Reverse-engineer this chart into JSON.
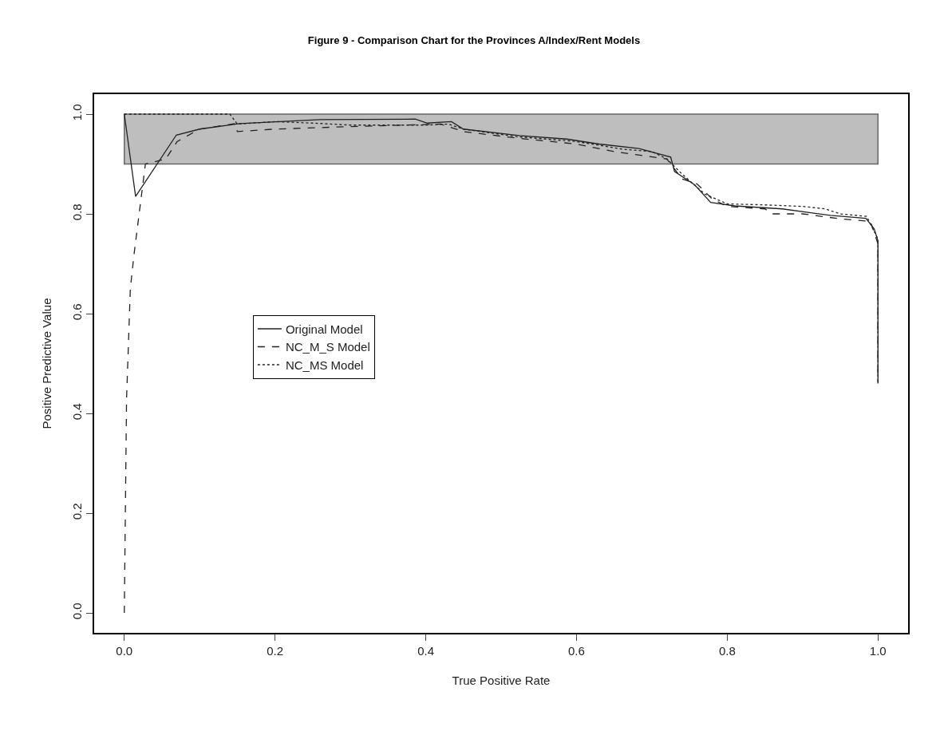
{
  "chart_data": {
    "type": "line",
    "title": "Figure 9 - Comparison Chart for the Provinces A/Index/Rent Models",
    "xlabel": "True Positive Rate",
    "ylabel": "Positive Predictive Value",
    "xlim": [
      -0.04,
      1.04
    ],
    "ylim": [
      -0.04,
      1.04
    ],
    "xticks": [
      {
        "value": 0,
        "label": "0.0"
      },
      0.2,
      0.4,
      0.6,
      0.8,
      {
        "value": 1,
        "label": "1.0"
      }
    ],
    "yticks": [
      {
        "value": 0,
        "label": "0.0"
      },
      0.2,
      0.4,
      0.6,
      0.8,
      {
        "value": 1,
        "label": "1.0"
      }
    ],
    "grid": false,
    "legend": "left",
    "marker": "none",
    "bands": [
      {
        "axis": "y",
        "from": 0.9,
        "to": 1.0,
        "color": "#bebebe"
      }
    ],
    "series": [
      {
        "name": "Original Model",
        "color": "#222222",
        "line_style": "solid",
        "x": [
          0,
          0.015,
          0.069,
          0.1,
          0.153,
          0.26,
          0.386,
          0.402,
          0.434,
          0.45,
          0.524,
          0.587,
          0.63,
          0.683,
          0.725,
          0.73,
          0.757,
          0.778,
          0.81,
          0.873,
          0.937,
          0.984,
          0.995,
          1.0,
          1.0
        ],
        "values": [
          1.0,
          0.835,
          0.958,
          0.97,
          0.981,
          0.989,
          0.99,
          0.982,
          0.985,
          0.97,
          0.957,
          0.95,
          0.94,
          0.931,
          0.914,
          0.885,
          0.858,
          0.823,
          0.816,
          0.81,
          0.797,
          0.791,
          0.77,
          0.746,
          0.462
        ]
      },
      {
        "name": "NC_M_S Model",
        "color": "#222222",
        "line_style": "dashed",
        "x": [
          0,
          0.003,
          0.008,
          0.013,
          0.028,
          0.055,
          0.07,
          0.1,
          0.147,
          0.15,
          0.2,
          0.3,
          0.42,
          0.45,
          0.52,
          0.6,
          0.65,
          0.72,
          0.74,
          0.76,
          0.78,
          0.8,
          0.85,
          0.86,
          0.9,
          0.95,
          0.99,
          1.0,
          1.0
        ],
        "values": [
          0,
          0.43,
          0.65,
          0.72,
          0.9,
          0.91,
          0.945,
          0.97,
          0.981,
          0.965,
          0.97,
          0.975,
          0.98,
          0.965,
          0.952,
          0.94,
          0.925,
          0.91,
          0.87,
          0.86,
          0.83,
          0.815,
          0.81,
          0.8,
          0.8,
          0.79,
          0.785,
          0.74,
          0.46
        ]
      },
      {
        "name": "NC_MS Model",
        "color": "#222222",
        "line_style": "dotted",
        "x": [
          0,
          0.14,
          0.15,
          0.2,
          0.25,
          0.3,
          0.4,
          0.43,
          0.45,
          0.52,
          0.6,
          0.66,
          0.7,
          0.72,
          0.74,
          0.77,
          0.8,
          0.85,
          0.9,
          0.93,
          0.95,
          0.985,
          1.0,
          1.0
        ],
        "values": [
          1.0,
          1.0,
          0.98,
          0.985,
          0.982,
          0.978,
          0.978,
          0.98,
          0.97,
          0.955,
          0.945,
          0.93,
          0.925,
          0.91,
          0.88,
          0.84,
          0.82,
          0.818,
          0.815,
          0.81,
          0.8,
          0.795,
          0.75,
          0.46
        ]
      }
    ]
  }
}
